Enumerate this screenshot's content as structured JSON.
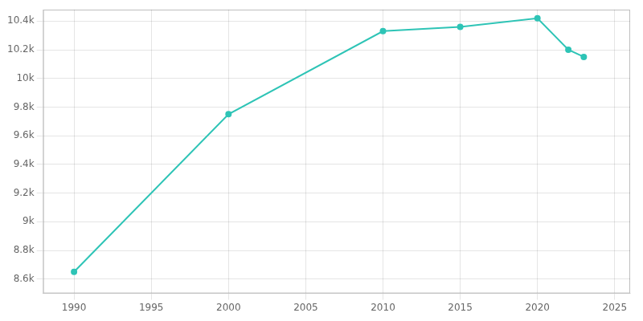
{
  "chart_data": {
    "type": "line",
    "x": [
      1990,
      2000,
      2010,
      2015,
      2020,
      2022,
      2023
    ],
    "values": [
      8650,
      9750,
      10330,
      10360,
      10420,
      10200,
      10150
    ],
    "color": "#2ec4b6",
    "marker": "circle",
    "xlim": [
      1988,
      2026
    ],
    "xticks": [
      1990,
      1995,
      2000,
      2005,
      2010,
      2015,
      2020,
      2025
    ],
    "ylim": [
      8500,
      10480
    ],
    "yticks": [
      {
        "value": 8600,
        "label": "8.6k"
      },
      {
        "value": 8800,
        "label": "8.8k"
      },
      {
        "value": 9000,
        "label": "9k"
      },
      {
        "value": 9200,
        "label": "9.2k"
      },
      {
        "value": 9400,
        "label": "9.4k"
      },
      {
        "value": 9600,
        "label": "9.6k"
      },
      {
        "value": 9800,
        "label": "9.8k"
      },
      {
        "value": 10000,
        "label": "10k"
      },
      {
        "value": 10200,
        "label": "10.2k"
      },
      {
        "value": 10400,
        "label": "10.4k"
      }
    ],
    "grid": true
  }
}
